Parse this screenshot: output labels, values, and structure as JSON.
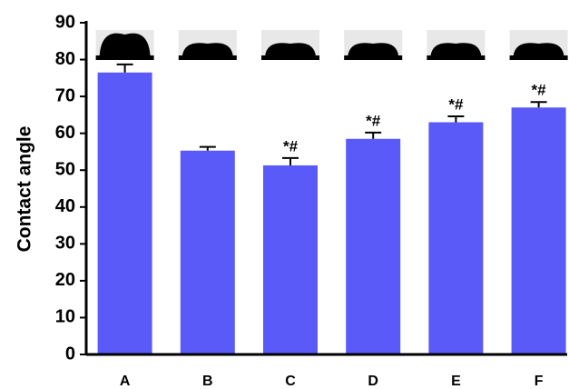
{
  "chart_data": {
    "type": "bar",
    "y_label": "Contact angle",
    "categories": [
      "A",
      "B",
      "C",
      "D",
      "E",
      "F"
    ],
    "values": [
      76.5,
      55.3,
      51.3,
      58.5,
      63,
      67
    ],
    "errors": [
      2.2,
      1.0,
      2.0,
      1.7,
      1.6,
      1.5
    ],
    "annotations": [
      null,
      null,
      "*#",
      "*#",
      "*#",
      "*#"
    ],
    "color": "#5a5af8",
    "ylim": [
      0,
      90
    ],
    "yticks": [
      0,
      10,
      20,
      30,
      40,
      50,
      60,
      70,
      80,
      90
    ]
  }
}
